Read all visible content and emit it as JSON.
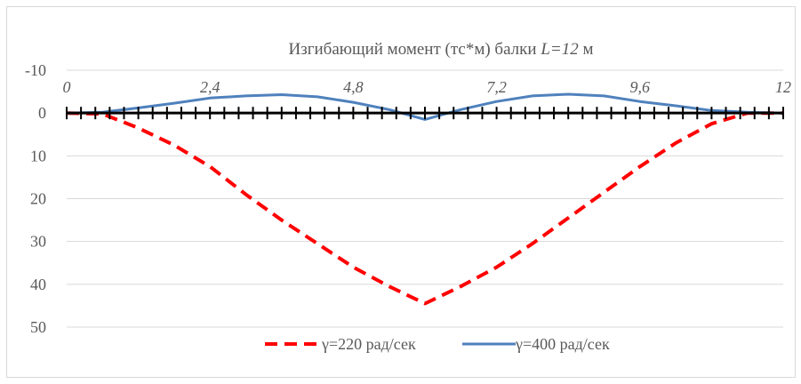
{
  "chart_data": {
    "type": "line",
    "title": {
      "prefix": "Изгибающий момент (тс*м) балки ",
      "italic": "L=12",
      "suffix": " м"
    },
    "x_axis": {
      "range": [
        0,
        12
      ],
      "tick_labels": [
        "0",
        "2,4",
        "4,8",
        "7,2",
        "9,6",
        "12"
      ],
      "tick_values": [
        0,
        2.4,
        4.8,
        7.2,
        9.6,
        12
      ]
    },
    "y_axis": {
      "inverted": true,
      "range": [
        -10,
        50
      ],
      "tick_values": [
        -10,
        0,
        10,
        20,
        30,
        40,
        50
      ],
      "tick_labels": [
        "-10",
        "0",
        "10",
        "20",
        "30",
        "40",
        "50"
      ]
    },
    "grid": "horizontal",
    "legend": {
      "position": "bottom"
    },
    "series": [
      {
        "name": "γ=220 рад/сек",
        "color": "#ff0000",
        "dash": "dashed",
        "x": [
          0,
          0.6,
          1.2,
          1.8,
          2.4,
          3.0,
          3.6,
          4.2,
          4.8,
          5.4,
          6.0,
          6.6,
          7.2,
          7.8,
          8.4,
          9.0,
          9.6,
          10.2,
          10.8,
          11.4,
          12.0
        ],
        "y": [
          0,
          0.2,
          3.5,
          7.5,
          12.5,
          19,
          25,
          30.5,
          36,
          40.5,
          44.5,
          40.5,
          36,
          30.5,
          24.5,
          18.5,
          12.5,
          7,
          2.5,
          0,
          0
        ]
      },
      {
        "name": "γ=400 рад/сек",
        "color": "#4f81bd",
        "dash": "solid",
        "x": [
          0,
          0.6,
          1.2,
          1.8,
          2.4,
          3.0,
          3.6,
          4.2,
          4.8,
          5.4,
          6.0,
          6.6,
          7.2,
          7.8,
          8.4,
          9.0,
          9.6,
          10.2,
          10.8,
          11.4,
          12.0
        ],
        "y": [
          0,
          -0.2,
          -1.2,
          -2.3,
          -3.5,
          -4.0,
          -4.3,
          -3.8,
          -2.5,
          -0.8,
          1.5,
          -0.8,
          -2.7,
          -4.0,
          -4.4,
          -4.0,
          -2.7,
          -1.7,
          -0.6,
          -0.2,
          0
        ]
      }
    ]
  }
}
